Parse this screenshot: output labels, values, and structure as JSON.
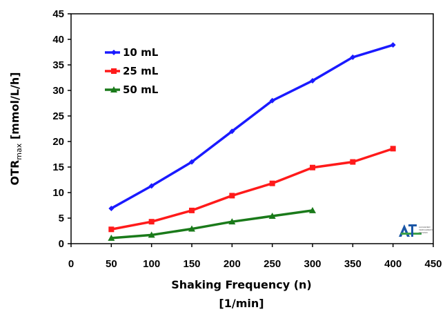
{
  "chart_data": {
    "type": "line",
    "title": "",
    "xlabel_line1": "Shaking Frequency (n)",
    "xlabel_line2": "[1/min]",
    "ylabel_main": "OTR",
    "ylabel_sub": "max",
    "ylabel_unit": " [mmol/L/h]",
    "xlim": [
      0,
      450
    ],
    "ylim": [
      0,
      45
    ],
    "xticks": [
      0,
      50,
      100,
      150,
      200,
      250,
      300,
      350,
      400,
      450
    ],
    "yticks": [
      0,
      5,
      10,
      15,
      20,
      25,
      30,
      35,
      40,
      45
    ],
    "grid": false,
    "legend_position": "top-left",
    "series": [
      {
        "name": "10 mL",
        "color": "#1a1aff",
        "marker": "diamond",
        "x": [
          50,
          100,
          150,
          200,
          250,
          300,
          350,
          400
        ],
        "y": [
          6.9,
          11.3,
          16.0,
          22.0,
          28.0,
          31.9,
          36.5,
          38.9
        ]
      },
      {
        "name": "25 mL",
        "color": "#ff1a1a",
        "marker": "square",
        "x": [
          50,
          100,
          150,
          200,
          250,
          300,
          350,
          400
        ],
        "y": [
          2.8,
          4.3,
          6.5,
          9.4,
          11.8,
          14.9,
          16.0,
          18.6
        ]
      },
      {
        "name": "50 mL",
        "color": "#1a7a1a",
        "marker": "triangle",
        "x": [
          50,
          100,
          150,
          200,
          250,
          300
        ],
        "y": [
          1.1,
          1.7,
          2.9,
          4.3,
          5.4,
          6.5
        ]
      }
    ]
  },
  "logo": {
    "text": "AVT",
    "subtext": [
      "AACHENER",
      "VERFAHRENS-",
      "TECHNIK"
    ]
  }
}
